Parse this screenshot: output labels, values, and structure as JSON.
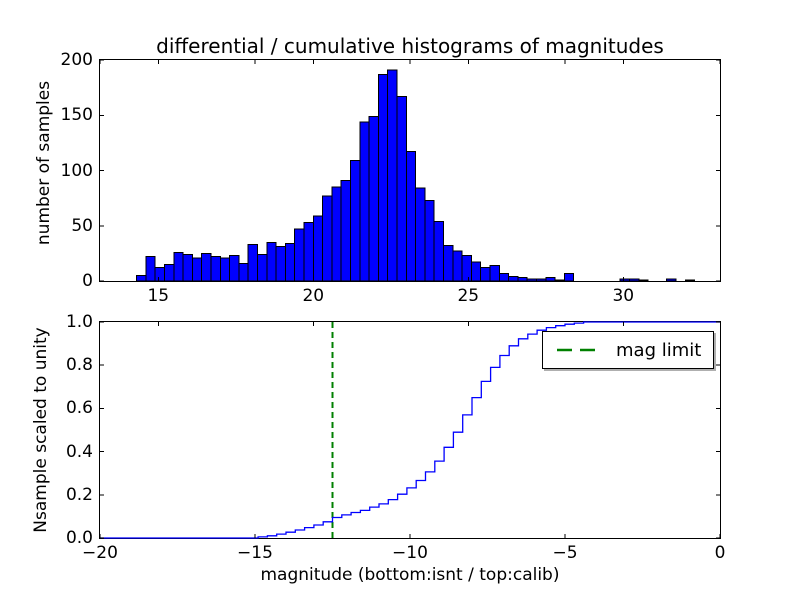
{
  "figure": {
    "background": "#ffffff",
    "accent_blue": "#0000ff",
    "accent_green": "#008000"
  },
  "chart_data": [
    {
      "type": "bar",
      "subplot": "top",
      "title": "differential / cumulative histograms of magnitudes",
      "ylabel": "number of samples",
      "xlim": [
        13.12,
        33.12
      ],
      "ylim": [
        0,
        200
      ],
      "xticks": [
        15,
        20,
        25,
        30
      ],
      "xtick_labels": [
        "15",
        "20",
        "25",
        "30"
      ],
      "yticks": [
        0,
        50,
        100,
        150,
        200
      ],
      "ytick_labels": [
        "0",
        "50",
        "100",
        "150",
        "200"
      ],
      "grid": false,
      "bin_start": 14.3,
      "bin_width": 0.3,
      "values": [
        5,
        22,
        12,
        15,
        26,
        24,
        21,
        25,
        22,
        21,
        23,
        16,
        33,
        24,
        35,
        31,
        34,
        47,
        53,
        59,
        77,
        85,
        91,
        109,
        144,
        149,
        187,
        191,
        167,
        117,
        84,
        73,
        54,
        32,
        27,
        23,
        17,
        12,
        14,
        7,
        4,
        3,
        2,
        2,
        3,
        1,
        7,
        0,
        0,
        0,
        0,
        0,
        2,
        2,
        1,
        0,
        0,
        2,
        0,
        1
      ],
      "bar_color": "#0000ff",
      "bar_edge": "#000000"
    },
    {
      "type": "line",
      "subplot": "bottom",
      "xlabel": "magnitude (bottom:isnt / top:calib)",
      "ylabel": "Nsample scaled to unity",
      "xlim": [
        -20,
        0
      ],
      "ylim": [
        0,
        1.0
      ],
      "xticks": [
        -20,
        -15,
        -10,
        -5,
        0
      ],
      "xtick_labels": [
        "−20",
        "−15",
        "−10",
        "−5",
        "0"
      ],
      "yticks": [
        0.0,
        0.2,
        0.4,
        0.6,
        0.8,
        1.0
      ],
      "ytick_labels": [
        "0.0",
        "0.2",
        "0.4",
        "0.6",
        "0.8",
        "1.0"
      ],
      "grid": false,
      "line_color": "#0000ff",
      "line_style": "step",
      "step_points": [
        [
          -14.9,
          0.005
        ],
        [
          -14.6,
          0.01
        ],
        [
          -14.3,
          0.018
        ],
        [
          -14.0,
          0.027
        ],
        [
          -13.7,
          0.037
        ],
        [
          -13.4,
          0.048
        ],
        [
          -13.1,
          0.06
        ],
        [
          -12.8,
          0.075
        ],
        [
          -12.5,
          0.095
        ],
        [
          -12.2,
          0.107
        ],
        [
          -11.9,
          0.118
        ],
        [
          -11.6,
          0.128
        ],
        [
          -11.3,
          0.143
        ],
        [
          -11.0,
          0.158
        ],
        [
          -10.7,
          0.178
        ],
        [
          -10.4,
          0.203
        ],
        [
          -10.1,
          0.232
        ],
        [
          -9.8,
          0.266
        ],
        [
          -9.5,
          0.306
        ],
        [
          -9.2,
          0.356
        ],
        [
          -8.9,
          0.42
        ],
        [
          -8.6,
          0.49
        ],
        [
          -8.3,
          0.57
        ],
        [
          -8.0,
          0.65
        ],
        [
          -7.7,
          0.725
        ],
        [
          -7.4,
          0.79
        ],
        [
          -7.1,
          0.845
        ],
        [
          -6.8,
          0.89
        ],
        [
          -6.5,
          0.922
        ],
        [
          -6.2,
          0.944
        ],
        [
          -5.9,
          0.962
        ],
        [
          -5.6,
          0.974
        ],
        [
          -5.3,
          0.983
        ],
        [
          -5.0,
          0.99
        ],
        [
          -4.7,
          0.995
        ],
        [
          -4.4,
          1.0
        ]
      ],
      "vline": {
        "x": -12.5,
        "color": "#008000",
        "style": "dashed",
        "label": "mag limit"
      },
      "legend": {
        "label": "mag limit",
        "position": "upper right"
      }
    }
  ]
}
